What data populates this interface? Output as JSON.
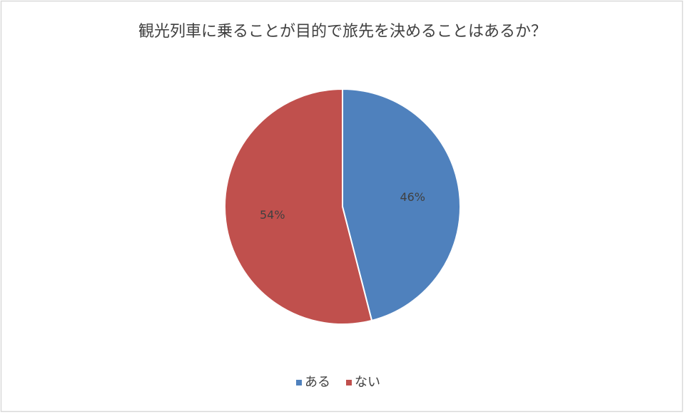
{
  "chart_data": {
    "type": "pie",
    "title": "観光列車に乗ることが目的で旅先を決めることはあるか？",
    "categories": [
      "ある",
      "ない"
    ],
    "values": [
      46,
      54
    ],
    "value_labels": [
      "46%",
      "54%"
    ],
    "colors": [
      "#4f81bd",
      "#c0504d"
    ],
    "legend": "bottom"
  }
}
